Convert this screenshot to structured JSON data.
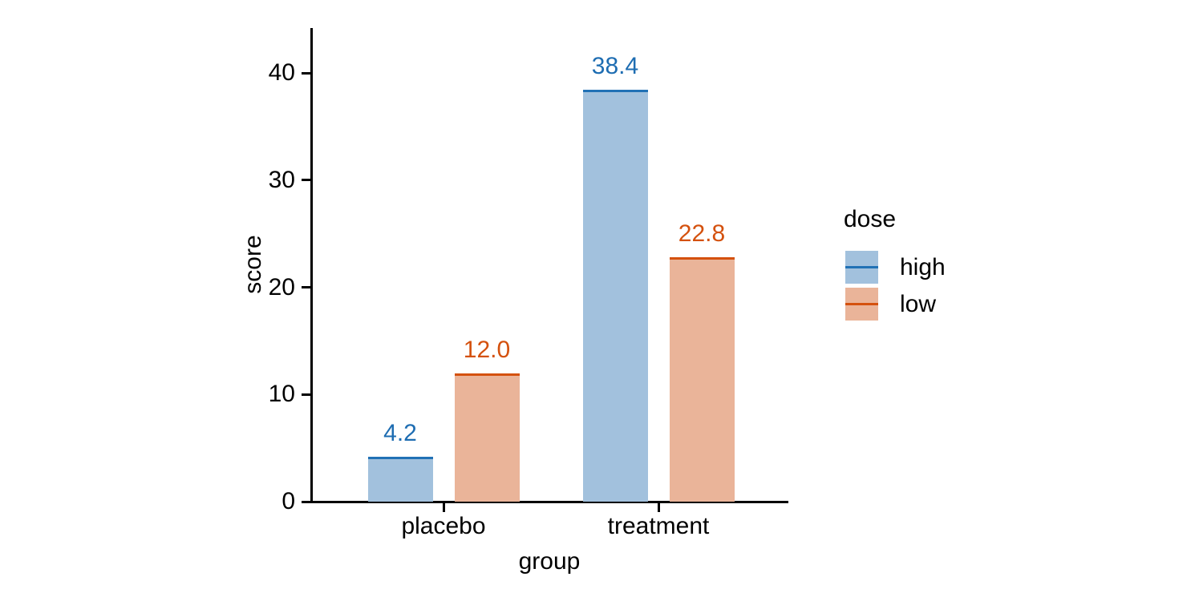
{
  "chart_data": {
    "type": "bar",
    "title": "",
    "xlabel": "group",
    "ylabel": "score",
    "categories": [
      "placebo",
      "treatment"
    ],
    "series": [
      {
        "name": "high",
        "values": [
          4.2,
          38.4
        ],
        "fill": "#a2c1dd",
        "edge": "#2171b5",
        "label_color": "#1e6db2"
      },
      {
        "name": "low",
        "values": [
          12.0,
          22.8
        ],
        "fill": "#eab499",
        "edge": "#d4510e",
        "label_color": "#d4510e"
      }
    ],
    "value_labels": [
      [
        "4.2",
        "38.4"
      ],
      [
        "12.0",
        "22.8"
      ]
    ],
    "y_ticks": [
      "0",
      "10",
      "20",
      "30",
      "40"
    ],
    "ylim": [
      0,
      44.2
    ],
    "grid": false,
    "axis_color": "#000000",
    "legend": {
      "title": "dose",
      "position": "right"
    }
  }
}
